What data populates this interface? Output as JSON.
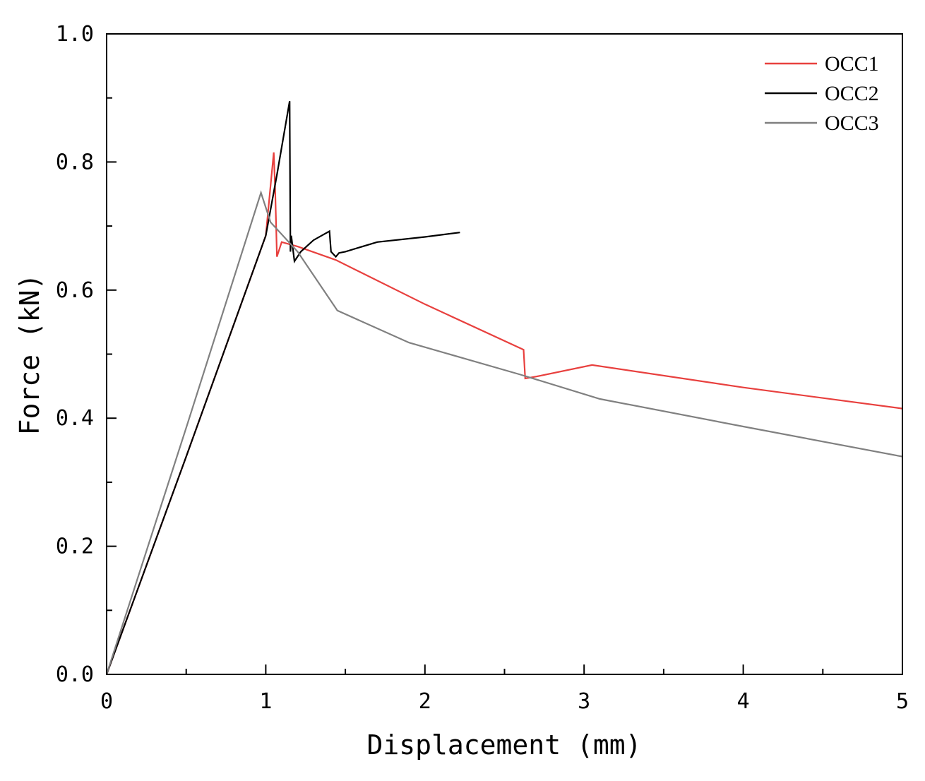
{
  "chart_data": {
    "type": "line",
    "title": "",
    "xlabel": "Displacement (mm)",
    "ylabel": "Force (kN)",
    "xlim": [
      0,
      5
    ],
    "ylim": [
      0,
      1.0
    ],
    "x_ticks": [
      "0",
      "1",
      "2",
      "3",
      "4",
      "5"
    ],
    "y_ticks": [
      "0.0",
      "0.2",
      "0.4",
      "0.6",
      "0.8",
      "1.0"
    ],
    "grid": false,
    "legend_position": "top-right",
    "series": [
      {
        "name": "OCC1",
        "color": "#e8403e",
        "points": [
          [
            0,
            0
          ],
          [
            0.5,
            0.34
          ],
          [
            1.0,
            0.685
          ],
          [
            1.05,
            0.815
          ],
          [
            1.06,
            0.75
          ],
          [
            1.07,
            0.652
          ],
          [
            1.1,
            0.675
          ],
          [
            1.2,
            0.668
          ],
          [
            1.44,
            0.647
          ],
          [
            2.0,
            0.578
          ],
          [
            2.62,
            0.507
          ],
          [
            2.63,
            0.462
          ],
          [
            2.7,
            0.465
          ],
          [
            3.05,
            0.483
          ],
          [
            4.0,
            0.448
          ],
          [
            5.0,
            0.415
          ]
        ]
      },
      {
        "name": "OCC2",
        "color": "#000000",
        "points": [
          [
            0,
            0
          ],
          [
            0.5,
            0.34
          ],
          [
            1.0,
            0.685
          ],
          [
            1.07,
            0.78
          ],
          [
            1.15,
            0.895
          ],
          [
            1.155,
            0.66
          ],
          [
            1.16,
            0.685
          ],
          [
            1.18,
            0.645
          ],
          [
            1.22,
            0.66
          ],
          [
            1.3,
            0.678
          ],
          [
            1.4,
            0.692
          ],
          [
            1.41,
            0.66
          ],
          [
            1.44,
            0.652
          ],
          [
            1.46,
            0.658
          ],
          [
            1.5,
            0.66
          ],
          [
            1.7,
            0.675
          ],
          [
            2.0,
            0.683
          ],
          [
            2.22,
            0.69
          ]
        ]
      },
      {
        "name": "OCC3",
        "color": "#808080",
        "points": [
          [
            0,
            0
          ],
          [
            0.5,
            0.385
          ],
          [
            0.97,
            0.752
          ],
          [
            1.03,
            0.706
          ],
          [
            1.2,
            0.66
          ],
          [
            1.45,
            0.568
          ],
          [
            1.9,
            0.518
          ],
          [
            2.6,
            0.468
          ],
          [
            3.1,
            0.43
          ],
          [
            4.0,
            0.387
          ],
          [
            5.0,
            0.34
          ]
        ]
      }
    ]
  }
}
